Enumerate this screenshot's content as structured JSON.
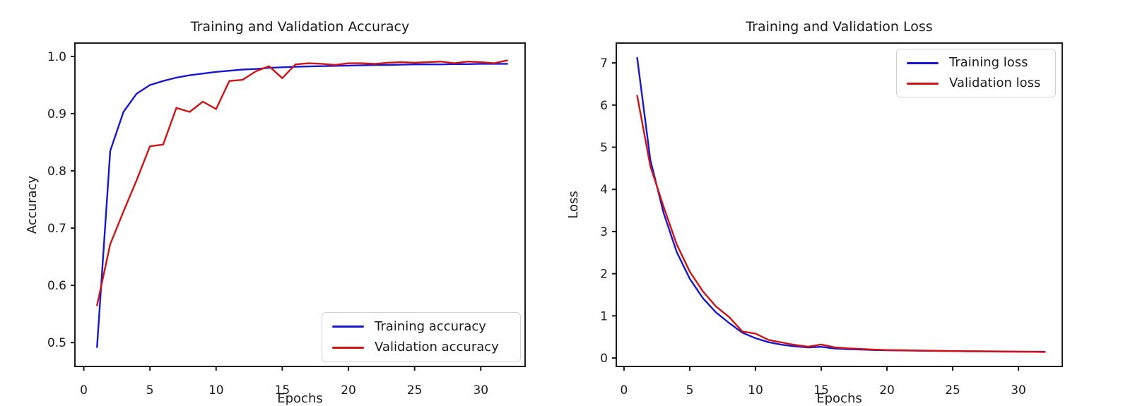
{
  "figure": {
    "background": "#ffffff",
    "axis_color": "#1c1c1c",
    "text_color": "#1c1c1c"
  },
  "chart_data": [
    {
      "type": "line",
      "title": "Training and Validation Accuracy",
      "xlabel": "Epochs",
      "ylabel": "Accuracy",
      "grid": false,
      "legend_loc": "lower right",
      "x": [
        1,
        2,
        3,
        4,
        5,
        6,
        7,
        8,
        9,
        10,
        11,
        12,
        13,
        14,
        15,
        16,
        17,
        18,
        19,
        20,
        21,
        22,
        23,
        24,
        25,
        26,
        27,
        28,
        29,
        30,
        31,
        32
      ],
      "series": [
        {
          "name": "Training accuracy",
          "color": "#1717d1",
          "values": [
            0.492,
            0.835,
            0.903,
            0.935,
            0.95,
            0.957,
            0.963,
            0.967,
            0.97,
            0.973,
            0.975,
            0.977,
            0.978,
            0.98,
            0.981,
            0.982,
            0.9825,
            0.983,
            0.9835,
            0.984,
            0.9845,
            0.985,
            0.985,
            0.9855,
            0.986,
            0.986,
            0.986,
            0.9865,
            0.9865,
            0.987,
            0.987,
            0.987
          ]
        },
        {
          "name": "Validation accuracy",
          "color": "#d01414",
          "values": [
            0.565,
            0.672,
            0.729,
            0.784,
            0.843,
            0.846,
            0.91,
            0.903,
            0.921,
            0.908,
            0.957,
            0.959,
            0.974,
            0.983,
            0.962,
            0.986,
            0.988,
            0.987,
            0.985,
            0.988,
            0.988,
            0.987,
            0.989,
            0.99,
            0.989,
            0.99,
            0.991,
            0.988,
            0.991,
            0.99,
            0.988,
            0.993
          ]
        }
      ],
      "xticks": [
        0,
        5,
        10,
        15,
        20,
        25,
        30
      ],
      "yticks": [
        0.5,
        0.6,
        0.7,
        0.8,
        0.9,
        1.0
      ],
      "ytick_labels": [
        "0.5",
        "0.6",
        "0.7",
        "0.8",
        "0.9",
        "1.0"
      ],
      "xlim": [
        -0.67,
        33.35
      ],
      "ylim": [
        0.4583,
        1.0233
      ]
    },
    {
      "type": "line",
      "title": "Training and Validation Loss",
      "xlabel": "Epochs",
      "ylabel": "Loss",
      "grid": false,
      "legend_loc": "upper right",
      "x": [
        1,
        2,
        3,
        4,
        5,
        6,
        7,
        8,
        9,
        10,
        11,
        12,
        13,
        14,
        15,
        16,
        17,
        18,
        19,
        20,
        21,
        22,
        23,
        24,
        25,
        26,
        27,
        28,
        29,
        30,
        31,
        32
      ],
      "series": [
        {
          "name": "Training loss",
          "color": "#1717d1",
          "values": [
            7.12,
            4.7,
            3.45,
            2.52,
            1.88,
            1.42,
            1.08,
            0.83,
            0.6,
            0.47,
            0.375,
            0.315,
            0.275,
            0.25,
            0.265,
            0.225,
            0.21,
            0.2,
            0.19,
            0.185,
            0.18,
            0.175,
            0.17,
            0.168,
            0.165,
            0.162,
            0.16,
            0.158,
            0.155,
            0.152,
            0.15,
            0.15
          ]
        },
        {
          "name": "Validation loss",
          "color": "#d01414",
          "values": [
            6.22,
            4.55,
            3.6,
            2.7,
            2.05,
            1.58,
            1.22,
            0.97,
            0.63,
            0.58,
            0.43,
            0.37,
            0.31,
            0.27,
            0.32,
            0.255,
            0.23,
            0.215,
            0.2,
            0.19,
            0.185,
            0.18,
            0.175,
            0.17,
            0.165,
            0.16,
            0.158,
            0.155,
            0.152,
            0.15,
            0.148,
            0.142
          ]
        }
      ],
      "xticks": [
        0,
        5,
        10,
        15,
        20,
        25,
        30
      ],
      "yticks": [
        0,
        1,
        2,
        3,
        4,
        5,
        6,
        7
      ],
      "ytick_labels": [
        "0",
        "1",
        "2",
        "3",
        "4",
        "5",
        "6",
        "7"
      ],
      "xlim": [
        -0.59,
        33.33
      ],
      "ylim": [
        -0.2,
        7.47
      ]
    }
  ]
}
